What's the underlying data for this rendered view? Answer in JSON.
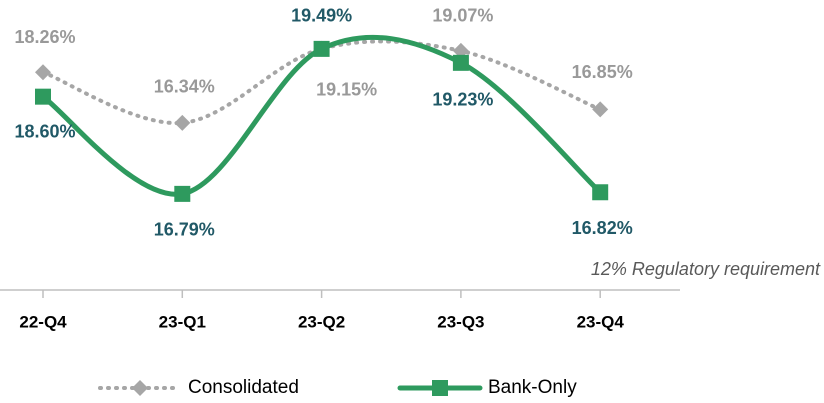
{
  "chart_data": {
    "type": "line",
    "categories": [
      "22-Q4",
      "23-Q1",
      "23-Q2",
      "23-Q3",
      "23-Q4"
    ],
    "series": [
      {
        "name": "Consolidated",
        "color": "#a6a6a6",
        "label_color": "#999999",
        "values": [
          18.26,
          16.34,
          19.15,
          19.07,
          16.85
        ],
        "value_labels": [
          "18.26%",
          "16.34%",
          "19.15%",
          "19.07%",
          "16.85%"
        ]
      },
      {
        "name": "Bank-Only",
        "color": "#2e9a5e",
        "label_color": "#215967",
        "axis": "y2",
        "values": [
          18.6,
          16.79,
          19.49,
          19.23,
          16.82
        ],
        "value_labels": [
          "18.60%",
          "16.79%",
          "19.49%",
          "19.23%",
          "16.82%"
        ]
      }
    ],
    "ylim": [
      10,
      21
    ],
    "y2lim": [
      15,
      20.4
    ],
    "annotation": "12% Regulatory requirement"
  }
}
